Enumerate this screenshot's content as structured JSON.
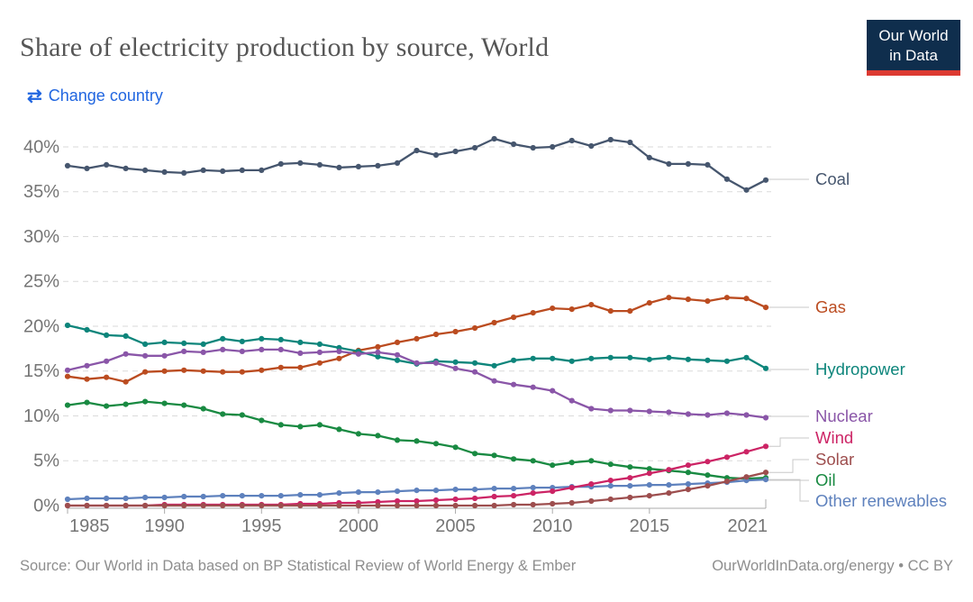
{
  "header": {
    "title": "Share of electricity production by source, World",
    "logo": {
      "line1": "Our World",
      "line2": "in Data"
    }
  },
  "controls": {
    "change_country_label": "Change country"
  },
  "chart_data": {
    "type": "line",
    "title": "Share of electricity production by source, World",
    "x": [
      1985,
      1986,
      1987,
      1988,
      1989,
      1990,
      1991,
      1992,
      1993,
      1994,
      1995,
      1996,
      1997,
      1998,
      1999,
      2000,
      2001,
      2002,
      2003,
      2004,
      2005,
      2006,
      2007,
      2008,
      2009,
      2010,
      2011,
      2012,
      2013,
      2014,
      2015,
      2016,
      2017,
      2018,
      2019,
      2020,
      2021
    ],
    "x_tick_labels": [
      1985,
      1990,
      1995,
      2000,
      2005,
      2010,
      2015,
      2021
    ],
    "y_ticks": [
      0,
      5,
      10,
      15,
      20,
      25,
      30,
      35,
      40
    ],
    "y_tick_suffix": "%",
    "ylim": [
      0,
      40
    ],
    "xlim": [
      1985,
      2021
    ],
    "grid": "horizontal-dashed",
    "legend_position": "right-of-line-ends",
    "series": [
      {
        "name": "Coal",
        "color": "#46566e",
        "values": [
          37.9,
          37.6,
          38.0,
          37.6,
          37.4,
          37.2,
          37.1,
          37.4,
          37.3,
          37.4,
          37.4,
          38.1,
          38.2,
          38.0,
          37.7,
          37.8,
          37.9,
          38.2,
          39.6,
          39.1,
          39.5,
          39.9,
          40.9,
          40.3,
          39.9,
          40.0,
          40.7,
          40.1,
          40.8,
          40.5,
          38.8,
          38.1,
          38.1,
          38.0,
          36.4,
          35.2,
          36.3
        ]
      },
      {
        "name": "Gas",
        "color": "#bb4c20",
        "values": [
          14.4,
          14.1,
          14.3,
          13.8,
          14.9,
          15.0,
          15.1,
          15.0,
          14.9,
          14.9,
          15.1,
          15.4,
          15.4,
          15.9,
          16.4,
          17.3,
          17.7,
          18.2,
          18.6,
          19.1,
          19.4,
          19.8,
          20.4,
          21.0,
          21.5,
          22.0,
          21.9,
          22.4,
          21.7,
          21.7,
          22.6,
          23.2,
          23.0,
          22.8,
          23.2,
          23.1,
          22.1
        ]
      },
      {
        "name": "Hydropower",
        "color": "#0d857b",
        "values": [
          20.1,
          19.6,
          19.0,
          18.9,
          18.0,
          18.2,
          18.1,
          18.0,
          18.6,
          18.3,
          18.6,
          18.5,
          18.2,
          18.0,
          17.6,
          17.2,
          16.6,
          16.2,
          15.8,
          16.1,
          16.0,
          15.9,
          15.6,
          16.2,
          16.4,
          16.4,
          16.1,
          16.4,
          16.5,
          16.5,
          16.3,
          16.5,
          16.3,
          16.2,
          16.1,
          16.5,
          15.3
        ]
      },
      {
        "name": "Nuclear",
        "color": "#8a56a8",
        "values": [
          15.1,
          15.6,
          16.1,
          16.9,
          16.7,
          16.7,
          17.2,
          17.1,
          17.4,
          17.2,
          17.4,
          17.4,
          17.0,
          17.1,
          17.2,
          16.9,
          17.1,
          16.8,
          15.9,
          15.9,
          15.3,
          14.9,
          13.9,
          13.5,
          13.2,
          12.8,
          11.7,
          10.8,
          10.6,
          10.6,
          10.5,
          10.4,
          10.2,
          10.1,
          10.3,
          10.1,
          9.8
        ]
      },
      {
        "name": "Wind",
        "color": "#cc2465",
        "values": [
          0.0,
          0.0,
          0.0,
          0.0,
          0.0,
          0.1,
          0.1,
          0.1,
          0.1,
          0.1,
          0.1,
          0.1,
          0.2,
          0.2,
          0.3,
          0.3,
          0.4,
          0.5,
          0.5,
          0.6,
          0.7,
          0.8,
          1.0,
          1.1,
          1.4,
          1.6,
          2.0,
          2.4,
          2.8,
          3.1,
          3.6,
          4.0,
          4.5,
          4.9,
          5.4,
          6.0,
          6.6
        ]
      },
      {
        "name": "Solar",
        "color": "#9d4e4e",
        "values": [
          0.0,
          0.0,
          0.0,
          0.0,
          0.0,
          0.0,
          0.0,
          0.0,
          0.0,
          0.0,
          0.0,
          0.0,
          0.0,
          0.0,
          0.0,
          0.0,
          0.0,
          0.0,
          0.0,
          0.0,
          0.0,
          0.0,
          0.0,
          0.1,
          0.1,
          0.2,
          0.3,
          0.5,
          0.7,
          0.9,
          1.1,
          1.4,
          1.8,
          2.2,
          2.7,
          3.2,
          3.7
        ]
      },
      {
        "name": "Oil",
        "color": "#198a42",
        "values": [
          11.2,
          11.5,
          11.1,
          11.3,
          11.6,
          11.4,
          11.2,
          10.8,
          10.2,
          10.1,
          9.5,
          9.0,
          8.8,
          9.0,
          8.5,
          8.0,
          7.8,
          7.3,
          7.2,
          6.9,
          6.5,
          5.8,
          5.6,
          5.2,
          5.0,
          4.5,
          4.8,
          5.0,
          4.6,
          4.3,
          4.1,
          3.9,
          3.7,
          3.4,
          3.1,
          3.0,
          3.1
        ]
      },
      {
        "name": "Other renewables",
        "color": "#5e81bd",
        "values": [
          0.7,
          0.8,
          0.8,
          0.8,
          0.9,
          0.9,
          1.0,
          1.0,
          1.1,
          1.1,
          1.1,
          1.1,
          1.2,
          1.2,
          1.4,
          1.5,
          1.5,
          1.6,
          1.7,
          1.7,
          1.8,
          1.8,
          1.9,
          1.9,
          2.0,
          2.0,
          2.1,
          2.1,
          2.2,
          2.2,
          2.3,
          2.3,
          2.4,
          2.5,
          2.6,
          2.8,
          2.9
        ]
      }
    ]
  },
  "footer": {
    "source": "Source: Our World in Data based on BP Statistical Review of World Energy & Ember",
    "site": "OurWorldInData.org/energy",
    "separator": "•",
    "license": "CC BY"
  }
}
